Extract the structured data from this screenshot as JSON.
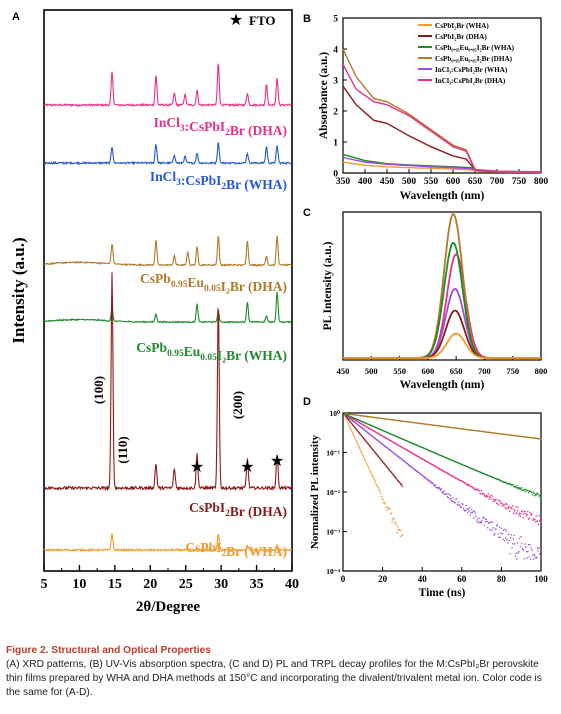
{
  "chart_data": [
    {
      "panel": "A",
      "type": "line",
      "xlabel": "2θ/Degree",
      "ylabel": "Intensity (a.u.)",
      "xlim": [
        5,
        40
      ],
      "xticks": [
        "5",
        "10",
        "15",
        "20",
        "25",
        "30",
        "35",
        "40"
      ],
      "legend": "FTO",
      "series": [
        {
          "name": "InCl3:CsPbI2Br (DHA)",
          "color": "#e8308a",
          "peaks": [
            [
              14.6,
              0.55
            ],
            [
              20.8,
              0.5
            ],
            [
              23.4,
              0.2
            ],
            [
              24.9,
              0.18
            ],
            [
              26.6,
              0.25
            ],
            [
              29.6,
              0.7
            ],
            [
              33.7,
              0.2
            ],
            [
              36.4,
              0.35
            ],
            [
              37.9,
              0.45
            ]
          ]
        },
        {
          "name": "InCl3:CsPbI2Br (WHA)",
          "color": "#2557d6",
          "peaks": [
            [
              14.6,
              0.3
            ],
            [
              20.8,
              0.35
            ],
            [
              23.4,
              0.15
            ],
            [
              24.9,
              0.12
            ],
            [
              26.6,
              0.18
            ],
            [
              29.6,
              0.38
            ],
            [
              33.7,
              0.18
            ],
            [
              36.4,
              0.3
            ],
            [
              37.9,
              0.32
            ]
          ]
        },
        {
          "name": "CsPb0.95Eu0.05I2Br (DHA)",
          "color": "#b07a2a",
          "peaks": [
            [
              14.6,
              0.45
            ],
            [
              20.8,
              0.55
            ],
            [
              23.4,
              0.2
            ],
            [
              25.3,
              0.3
            ],
            [
              26.6,
              0.4
            ],
            [
              29.6,
              0.65
            ],
            [
              33.7,
              0.55
            ],
            [
              36.4,
              0.2
            ],
            [
              37.9,
              0.65
            ]
          ]
        },
        {
          "name": "CsPb0.95Eu0.05I2Br (WHA)",
          "color": "#1f8a2a",
          "peaks": [
            [
              14.6,
              0.3
            ],
            [
              20.8,
              0.2
            ],
            [
              26.6,
              0.45
            ],
            [
              29.6,
              0.25
            ],
            [
              33.7,
              0.5
            ],
            [
              36.4,
              0.15
            ],
            [
              37.9,
              0.75
            ]
          ]
        },
        {
          "name": "CsPbI2Br (DHA)",
          "color": "#8b1a1a",
          "peaks": [
            [
              14.6,
              2.2
            ],
            [
              20.8,
              0.25
            ],
            [
              23.4,
              0.2
            ],
            [
              26.6,
              0.35
            ],
            [
              29.6,
              1.9
            ],
            [
              33.7,
              0.3
            ],
            [
              37.9,
              0.35
            ]
          ]
        },
        {
          "name": "CsPbI2Br (WHA)",
          "color": "#f39a2b",
          "peaks": [
            [
              14.6,
              0.3
            ],
            [
              29.6,
              0.3
            ],
            [
              33.7,
              0.08
            ],
            [
              37.9,
              0.1
            ]
          ]
        }
      ],
      "annotations": [
        "(100)",
        "(110)",
        "(200)",
        "★",
        "★",
        "★"
      ],
      "labels": [
        {
          "text": "InCl",
          "sub": "3",
          "text2": ":CsPbI",
          "sub2": "2",
          "text3": "Br  (DHA)",
          "color": "#e8308a"
        },
        {
          "text": "InCl",
          "sub": "3",
          "text2": ":CsPbI",
          "sub2": "2",
          "text3": "Br  (WHA)",
          "color": "#2557d6"
        },
        {
          "text": "CsPb",
          "sub": "0.95",
          "text2": "Eu",
          "sub2": "0.05",
          "text3": "I₂Br  (DHA)",
          "color": "#b07a2a"
        },
        {
          "text": "CsPb",
          "sub": "0.95",
          "text2": "Eu",
          "sub2": "0.05",
          "text3": "I₂Br  (WHA)",
          "color": "#1f8a2a"
        },
        {
          "text": "CsPbI",
          "sub": "2",
          "text2": "Br  (DHA)",
          "sub2": "",
          "text3": "",
          "color": "#8b1a1a"
        },
        {
          "text": "CsPbI",
          "sub": "2",
          "text2": "Br  (WHA)",
          "sub2": "",
          "text3": "",
          "color": "#f39a2b"
        }
      ]
    },
    {
      "panel": "B",
      "type": "line",
      "xlabel": "Wavelength (nm)",
      "ylabel": "Absorbance (a.u.)",
      "xlim": [
        350,
        800
      ],
      "ylim": [
        0,
        5
      ],
      "xticks": [
        "350",
        "400",
        "450",
        "500",
        "550",
        "600",
        "650",
        "700",
        "750",
        "800"
      ],
      "yticks": [
        "0",
        "1",
        "2",
        "3",
        "4",
        "5"
      ],
      "legend_labels": [
        "CsPbI₂Br (WHA)",
        "CsPbI₂Br (DHA)",
        "CsPb₀.₉₅Eu₀.₀₅I₂Br (WHA)",
        "CsPb₀.₉₅Eu₀.₀₅I₂Br (DHA)",
        "InCl₃:CsPbI₂Br (WHA)",
        "InCl₃:CsPbI₂Br (DHA)"
      ],
      "series": [
        {
          "name": "CsPbI2Br (WHA)",
          "color": "#f39a2b",
          "x": [
            350,
            400,
            450,
            500,
            550,
            600,
            640,
            660,
            700,
            800
          ],
          "y": [
            0.35,
            0.25,
            0.2,
            0.17,
            0.15,
            0.13,
            0.1,
            0.05,
            0.03,
            0.02
          ]
        },
        {
          "name": "CsPbI2Br (DHA)",
          "color": "#8b1a1a",
          "x": [
            350,
            380,
            420,
            450,
            500,
            550,
            600,
            630,
            650,
            700,
            800
          ],
          "y": [
            2.8,
            2.2,
            1.7,
            1.6,
            1.2,
            0.85,
            0.55,
            0.45,
            0.1,
            0.05,
            0.03
          ]
        },
        {
          "name": "CsPb0.95Eu0.05I2Br (WHA)",
          "color": "#1f8a2a",
          "x": [
            350,
            400,
            450,
            500,
            550,
            600,
            640,
            660,
            700,
            800
          ],
          "y": [
            0.6,
            0.4,
            0.3,
            0.26,
            0.23,
            0.2,
            0.17,
            0.08,
            0.05,
            0.03
          ]
        },
        {
          "name": "CsPb0.95Eu0.05I2Br (DHA)",
          "color": "#b07a2a",
          "x": [
            350,
            380,
            420,
            450,
            500,
            550,
            600,
            630,
            650,
            700,
            800
          ],
          "y": [
            4.0,
            3.1,
            2.4,
            2.3,
            1.9,
            1.4,
            0.9,
            0.75,
            0.12,
            0.06,
            0.04
          ]
        },
        {
          "name": "InCl3:CsPbI2Br (WHA)",
          "color": "#9b4dd9",
          "x": [
            350,
            400,
            450,
            500,
            550,
            600,
            640,
            660,
            700,
            800
          ],
          "y": [
            0.5,
            0.35,
            0.28,
            0.24,
            0.2,
            0.17,
            0.14,
            0.06,
            0.04,
            0.02
          ]
        },
        {
          "name": "InCl3:CsPbI2Br (DHA)",
          "color": "#e8308a",
          "x": [
            350,
            380,
            420,
            450,
            500,
            550,
            600,
            630,
            650,
            700,
            800
          ],
          "y": [
            3.5,
            2.7,
            2.3,
            2.2,
            1.85,
            1.35,
            0.85,
            0.7,
            0.1,
            0.05,
            0.03
          ]
        }
      ]
    },
    {
      "panel": "C",
      "type": "line",
      "xlabel": "Wavelength (nm)",
      "ylabel": "PL Intensity (a.u.)",
      "xlim": [
        450,
        800
      ],
      "xticks": [
        "450",
        "500",
        "550",
        "600",
        "650",
        "700",
        "750",
        "800"
      ],
      "series": [
        {
          "name": "CsPbI2Br (WHA)",
          "color": "#f39a2b",
          "peak": 650,
          "height": 0.17,
          "width": 23
        },
        {
          "name": "CsPbI2Br (DHA)",
          "color": "#8b1a1a",
          "peak": 648,
          "height": 0.33,
          "width": 23
        },
        {
          "name": "CsPb0.95Eu0.05I2Br (WHA)",
          "color": "#1f8a2a",
          "peak": 645,
          "height": 0.8,
          "width": 23
        },
        {
          "name": "CsPb0.95Eu0.05I2Br (DHA)",
          "color": "#b07a2a",
          "peak": 645,
          "height": 1.0,
          "width": 23
        },
        {
          "name": "InCl3:CsPbI2Br (WHA)",
          "color": "#9b4dd9",
          "peak": 648,
          "height": 0.48,
          "width": 23
        },
        {
          "name": "InCl3:CsPbI2Br (DHA)",
          "color": "#e8308a",
          "peak": 650,
          "height": 0.72,
          "width": 23
        }
      ]
    },
    {
      "panel": "D",
      "type": "scatter",
      "xlabel": "Time (ns)",
      "ylabel": "Normalized PL intensity",
      "xlim": [
        0,
        100
      ],
      "ylim_log10": [
        -4,
        0
      ],
      "xticks": [
        "0",
        "20",
        "40",
        "60",
        "80",
        "100"
      ],
      "yticks": [
        "10⁰",
        "10⁻¹",
        "10⁻²",
        "10⁻³",
        "10⁻⁴"
      ],
      "series": [
        {
          "name": "CsPbI2Br (WHA)",
          "color": "#f39a2b",
          "tau": 4,
          "floor": -3.5,
          "xmax": 30
        },
        {
          "name": "CsPbI2Br (DHA)",
          "color": "#8b1a1a",
          "tau": 7,
          "floor": -2.9,
          "xmax": 30
        },
        {
          "name": "CsPb0.95Eu0.05I2Br (WHA)",
          "color": "#1f8a2a",
          "tau": 20,
          "floor": -2.5,
          "xmax": 100
        },
        {
          "name": "CsPb0.95Eu0.05I2Br (DHA)",
          "color": "#b07a2a",
          "tau": 65,
          "floor": -1.5,
          "xmax": 100
        },
        {
          "name": "InCl3:CsPbI2Br (WHA)",
          "color": "#9b4dd9",
          "tau": 11,
          "floor": -3.3,
          "xmax": 100
        },
        {
          "name": "InCl3:CsPbI2Br (DHA)",
          "color": "#e8308a",
          "tau": 15,
          "floor": -2.9,
          "xmax": 100
        }
      ]
    }
  ],
  "caption": {
    "title": "Figure 2.  Structural and Optical Properties",
    "body": "(A) XRD patterns, (B) UV-Vis absorption spectra, (C and D) PL and TRPL decay profiles for the M:CsPbI₂Br perovskite thin films prepared by WHA and DHA methods at 150°C and incorporating the divalent/trivalent metal ion. Color code is the same for (A-D)."
  }
}
